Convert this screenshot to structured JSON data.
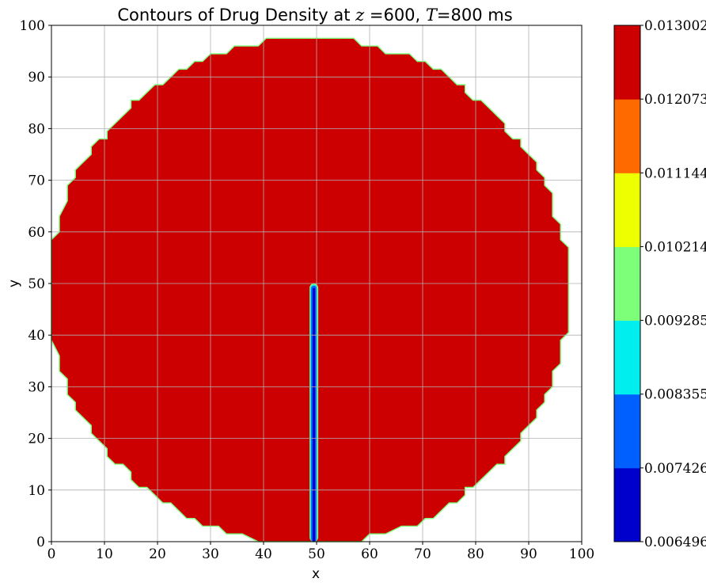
{
  "chart_data": {
    "type": "contour",
    "title": {
      "prefix": "Contours of Drug Density at ",
      "z_symbol": "z",
      "z_value": " =600, ",
      "t_symbol": "T",
      "t_value": "=800 ms"
    },
    "xlabel": "x",
    "ylabel": "y",
    "xlim": [
      0,
      100
    ],
    "ylim": [
      0,
      100
    ],
    "xticks": [
      "0",
      "10",
      "20",
      "30",
      "40",
      "50",
      "60",
      "70",
      "80",
      "90",
      "100"
    ],
    "yticks": [
      "0",
      "10",
      "20",
      "30",
      "40",
      "50",
      "60",
      "70",
      "80",
      "90",
      "100"
    ],
    "grid": true,
    "domain": {
      "shape": "disk",
      "center": [
        48.5,
        48.5
      ],
      "radius": 49
    },
    "needle": {
      "x_center": 49.5,
      "y_range": [
        0,
        50
      ]
    },
    "colorbar": {
      "levels": [
        "0.006496",
        "0.007426",
        "0.008355",
        "0.009285",
        "0.010214",
        "0.011144",
        "0.012073",
        "0.013002"
      ],
      "colors": [
        "#0000cc",
        "#0060ff",
        "#00eeee",
        "#7dff7a",
        "#eeff00",
        "#ff6a00",
        "#cc0000"
      ]
    }
  }
}
